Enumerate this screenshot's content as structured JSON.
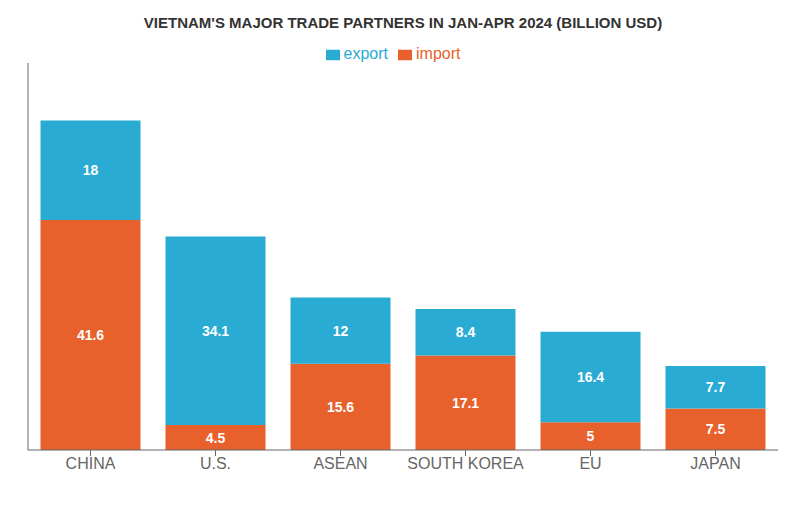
{
  "chart_data": {
    "type": "bar",
    "title": "VIETNAM'S MAJOR TRADE PARTNERS IN JAN-APR 2024 (BILLION USD)",
    "categories": [
      "CHINA",
      "U.S.",
      "ASEAN",
      "SOUTH KOREA",
      "EU",
      "JAPAN"
    ],
    "series": [
      {
        "name": "import",
        "color": "#E8612C",
        "values": [
          41.6,
          4.5,
          15.6,
          17.1,
          5.0,
          7.5
        ]
      },
      {
        "name": "export",
        "color": "#29ABD4",
        "values": [
          18.0,
          34.1,
          12.0,
          8.4,
          16.4,
          7.7
        ]
      }
    ],
    "stacked": true,
    "ylim": [
      0,
      70
    ],
    "data_labels": true,
    "tick_labels": "x",
    "grid": false,
    "legend": "top"
  }
}
